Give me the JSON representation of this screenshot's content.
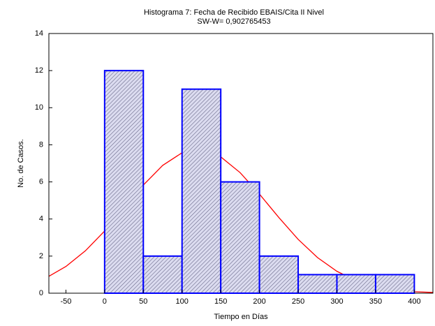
{
  "chart_data": {
    "type": "histogram",
    "title": "Histograma 7: Fecha de Recibido EBAIS/Cita II Nivel",
    "subtitle": "SW-W= 0,902765453",
    "x_label": "Tiempo en Días",
    "y_label": "No. de Casos.",
    "bins": [
      0,
      50,
      100,
      150,
      200,
      250,
      300,
      350,
      400
    ],
    "counts": [
      12,
      2,
      11,
      6,
      2,
      1,
      1,
      1
    ],
    "color": "#0000ff",
    "xlim": [
      -72,
      424
    ],
    "xticks": [
      -50,
      0,
      50,
      100,
      150,
      200,
      250,
      300,
      350,
      400
    ],
    "ylim": [
      0,
      14
    ],
    "yticks": [
      0,
      2,
      4,
      6,
      8,
      10,
      12,
      14
    ],
    "curve": {
      "color": "#ff0000",
      "x": [
        -72,
        -50,
        -25,
        0,
        25,
        50,
        75,
        100,
        120,
        125,
        150,
        175,
        200,
        225,
        250,
        275,
        300,
        325,
        350,
        375,
        400,
        424
      ],
      "values": [
        0.91,
        1.44,
        2.28,
        3.35,
        4.58,
        5.83,
        6.89,
        7.57,
        7.75,
        7.74,
        7.35,
        6.5,
        5.34,
        4.08,
        2.9,
        1.92,
        1.18,
        0.67,
        0.36,
        0.18,
        0.08,
        0.04
      ]
    }
  }
}
